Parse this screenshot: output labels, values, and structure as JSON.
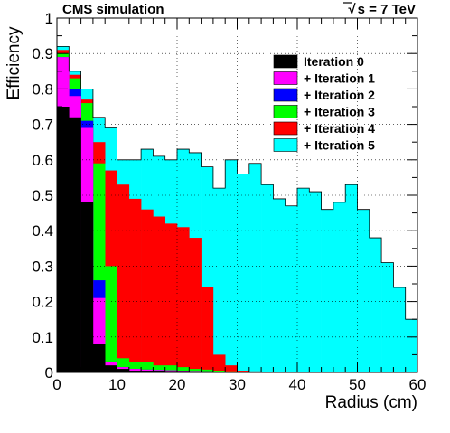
{
  "header": {
    "left": "CMS simulation",
    "right_sqrt": "√",
    "right_rest": "s = 7 TeV"
  },
  "chart_data": {
    "type": "bar",
    "subtype": "stacked-histogram",
    "xlabel": "Radius (cm)",
    "ylabel": "Efficiency",
    "xlim": [
      0,
      60
    ],
    "ylim": [
      0,
      1
    ],
    "grid": true,
    "legend_position": "top-right",
    "x_ticks": [
      0,
      10,
      20,
      30,
      40,
      50,
      60
    ],
    "y_ticks": [
      0,
      0.1,
      0.2,
      0.3,
      0.4,
      0.5,
      0.6,
      0.7,
      0.8,
      0.9,
      1
    ],
    "y_tick_labels": [
      "0",
      "0.1",
      "0.2",
      "0.3",
      "0.4",
      "0.5",
      "0.6",
      "0.7",
      "0.8",
      "0.9",
      "1"
    ],
    "bin_width": 2,
    "bin_edges_start": 0,
    "series": [
      {
        "name": "Iteration 0",
        "color": "#000000",
        "values": [
          0.75,
          0.72,
          0.48,
          0.08,
          0.02,
          0.01,
          0.005,
          0.005,
          0.005,
          0.004,
          0.004,
          0.003,
          0.003,
          0,
          0,
          0,
          0,
          0,
          0,
          0,
          0,
          0,
          0,
          0,
          0,
          0,
          0,
          0,
          0,
          0
        ]
      },
      {
        "name": "+ Iteration 1",
        "color": "#ff00ff",
        "values": [
          0.89,
          0.78,
          0.69,
          0.21,
          0.03,
          0.015,
          0.01,
          0.008,
          0.007,
          0.006,
          0.005,
          0.004,
          0.003,
          0.002,
          0.001,
          0,
          0,
          0,
          0,
          0,
          0,
          0,
          0,
          0,
          0,
          0,
          0,
          0,
          0,
          0
        ]
      },
      {
        "name": "+ Iteration 2",
        "color": "#0000ff",
        "values": [
          0.89,
          0.8,
          0.71,
          0.26,
          0.03,
          0.015,
          0.01,
          0.008,
          0.007,
          0.006,
          0.005,
          0.004,
          0.003,
          0.002,
          0.001,
          0,
          0,
          0,
          0,
          0,
          0,
          0,
          0,
          0,
          0,
          0,
          0,
          0,
          0,
          0
        ]
      },
      {
        "name": "+ Iteration 3",
        "color": "#00ff00",
        "values": [
          0.9,
          0.83,
          0.76,
          0.59,
          0.3,
          0.04,
          0.03,
          0.03,
          0.02,
          0.02,
          0.015,
          0.01,
          0.008,
          0.005,
          0.003,
          0.002,
          0.001,
          0,
          0,
          0,
          0,
          0,
          0,
          0,
          0,
          0,
          0,
          0,
          0,
          0
        ]
      },
      {
        "name": "+ Iteration 4",
        "color": "#ff0000",
        "values": [
          0.91,
          0.84,
          0.77,
          0.65,
          0.57,
          0.53,
          0.49,
          0.46,
          0.44,
          0.42,
          0.41,
          0.38,
          0.24,
          0.05,
          0.02,
          0.005,
          0.003,
          0.002,
          0.001,
          0,
          0,
          0,
          0,
          0,
          0,
          0,
          0,
          0,
          0,
          0
        ]
      },
      {
        "name": "+ Iteration 5",
        "color": "#00ffff",
        "values": [
          0.92,
          0.85,
          0.8,
          0.72,
          0.69,
          0.6,
          0.6,
          0.63,
          0.61,
          0.6,
          0.63,
          0.62,
          0.58,
          0.52,
          0.6,
          0.56,
          0.59,
          0.53,
          0.49,
          0.47,
          0.52,
          0.51,
          0.46,
          0.48,
          0.53,
          0.46,
          0.38,
          0.31,
          0.24,
          0.15
        ]
      }
    ]
  }
}
